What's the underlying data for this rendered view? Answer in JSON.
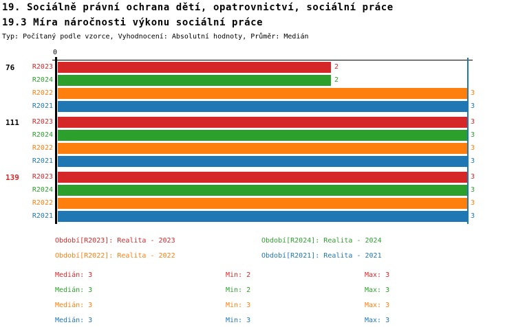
{
  "header": {
    "title_line1": "19. Sociálně právní ochrana dětí, opatrovnictví, sociální práce",
    "title_line2": "19.3 Míra náročnosti výkonu sociální práce",
    "meta_line": "Typ: Počítaný podle vzorce, Vyhodnocení: Absolutní hodnoty, Průměr: Medián"
  },
  "chart_data": {
    "type": "bar",
    "orientation": "horizontal",
    "value_axis": {
      "zero_label": "0",
      "xlim": [
        0,
        3.35
      ],
      "grid": false
    },
    "median_line_value": 3,
    "colors": {
      "R2023": "#d62728",
      "R2024": "#2ca02c",
      "R2022": "#ff7f0e",
      "R2021": "#1f77b4",
      "axis": "#000000",
      "median_line": "#1f77b4"
    },
    "groups": [
      {
        "label": "76",
        "label_color": "#000000",
        "bars": [
          {
            "series": "R2023",
            "value": 2
          },
          {
            "series": "R2024",
            "value": 2
          },
          {
            "series": "R2022",
            "value": 3
          },
          {
            "series": "R2021",
            "value": 3
          }
        ]
      },
      {
        "label": "111",
        "label_color": "#000000",
        "bars": [
          {
            "series": "R2023",
            "value": 3
          },
          {
            "series": "R2024",
            "value": 3
          },
          {
            "series": "R2022",
            "value": 3
          },
          {
            "series": "R2021",
            "value": 3
          }
        ]
      },
      {
        "label": "139",
        "label_color": "#d62728",
        "bars": [
          {
            "series": "R2023",
            "value": 3
          },
          {
            "series": "R2024",
            "value": 3
          },
          {
            "series": "R2022",
            "value": 3
          },
          {
            "series": "R2021",
            "value": 3
          }
        ]
      }
    ]
  },
  "legend": {
    "items": [
      {
        "text": "Období[R2023]: Realita - 2023",
        "color": "#d62728"
      },
      {
        "text": "Období[R2024]: Realita - 2024",
        "color": "#2ca02c"
      },
      {
        "text": "Období[R2022]: Realita - 2022",
        "color": "#ff7f0e"
      },
      {
        "text": "Období[R2021]: Realita - 2021",
        "color": "#1f77b4"
      }
    ]
  },
  "stats": {
    "rows": [
      {
        "series": "R2023",
        "color": "#d62728",
        "median": "Medián: 3",
        "min": "Min: 2",
        "max": "Max: 3"
      },
      {
        "series": "R2024",
        "color": "#2ca02c",
        "median": "Medián: 3",
        "min": "Min: 2",
        "max": "Max: 3"
      },
      {
        "series": "R2022",
        "color": "#ff7f0e",
        "median": "Medián: 3",
        "min": "Min: 3",
        "max": "Max: 3"
      },
      {
        "series": "R2021",
        "color": "#1f77b4",
        "median": "Medián: 3",
        "min": "Min: 3",
        "max": "Max: 3"
      }
    ]
  }
}
